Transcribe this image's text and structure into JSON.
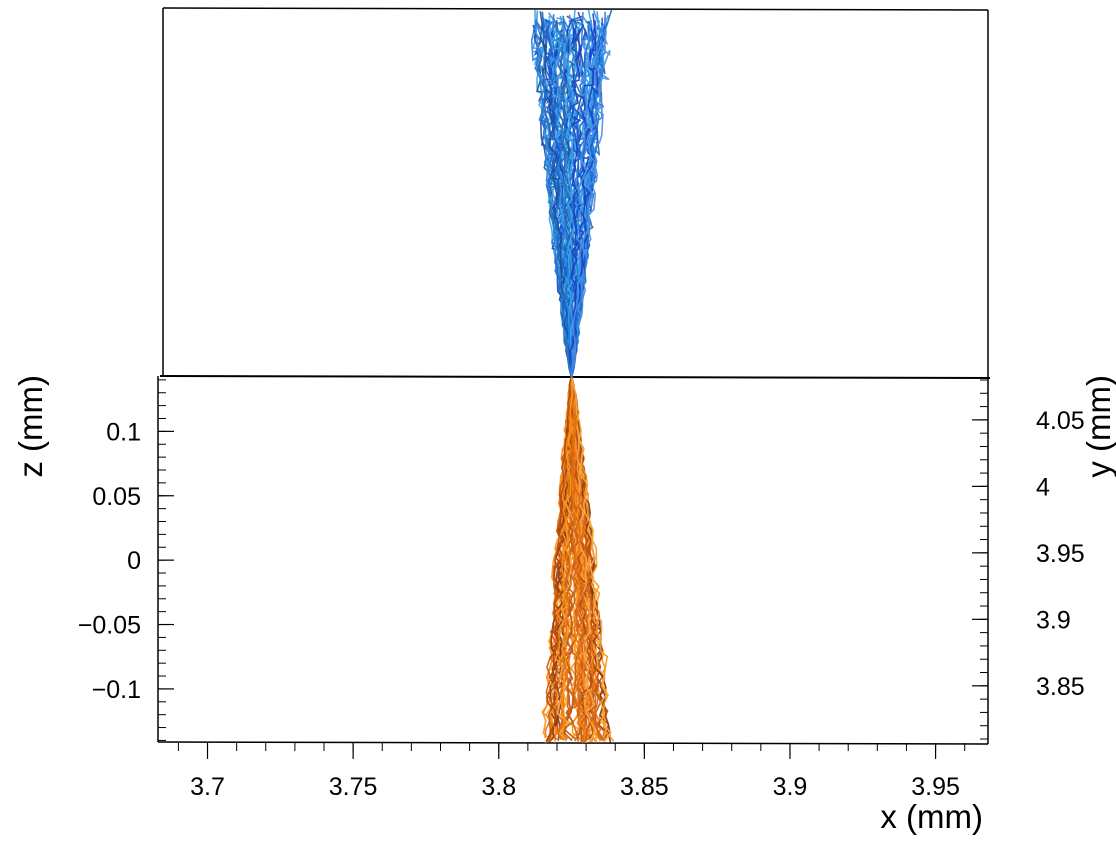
{
  "chart_data": {
    "type": "line",
    "description_note": "",
    "xlabel": "x (mm)",
    "ylabel": "z (mm)",
    "y2label": "y (mm)",
    "xlim": [
      3.683,
      3.968
    ],
    "ylim": [
      -0.142,
      0.143
    ],
    "y2lim": [
      3.807,
      4.083
    ],
    "x_ticks": [
      {
        "value": 3.7,
        "label": "3.7"
      },
      {
        "value": 3.75,
        "label": "3.75"
      },
      {
        "value": 3.8,
        "label": "3.8"
      },
      {
        "value": 3.85,
        "label": "3.85"
      },
      {
        "value": 3.9,
        "label": "3.9"
      },
      {
        "value": 3.95,
        "label": "3.95"
      }
    ],
    "y_ticks": [
      {
        "value": 0.1,
        "label": "0.1"
      },
      {
        "value": 0.05,
        "label": "0.05"
      },
      {
        "value": 0.0,
        "label": "0"
      },
      {
        "value": -0.05,
        "label": "−0.05"
      },
      {
        "value": -0.1,
        "label": "−0.1"
      }
    ],
    "y2_ticks": [
      {
        "value": 4.05,
        "label": "4.05"
      },
      {
        "value": 4.0,
        "label": "4"
      },
      {
        "value": 3.95,
        "label": "3.95"
      },
      {
        "value": 3.9,
        "label": "3.9"
      },
      {
        "value": 3.85,
        "label": "3.85"
      }
    ],
    "series": [
      {
        "view": "lower",
        "colors": [
          "#e8740c",
          "#f59a1a",
          "#c85a12",
          "#ff8c1a",
          "#b34a0e",
          "#f7a84a",
          "#d9661a",
          "#8c3a0a"
        ],
        "source_x": 3.825,
        "source_z": 0.143,
        "end_z": -0.14,
        "end_x_min": 3.815,
        "end_x_max": 3.838,
        "count": 70
      },
      {
        "view": "upper",
        "colors": [
          "#1f7fd8",
          "#2f9be6",
          "#1a5fd0",
          "#3aa6ee",
          "#1c3fc8",
          "#4a90e2",
          "#2468b8",
          "#1850a0"
        ],
        "source_x": 3.825,
        "source_y": 3.807,
        "end_y": 4.083,
        "end_x_min": 3.812,
        "end_x_max": 3.838,
        "count": 70
      }
    ],
    "grid": false,
    "legend": "none"
  }
}
